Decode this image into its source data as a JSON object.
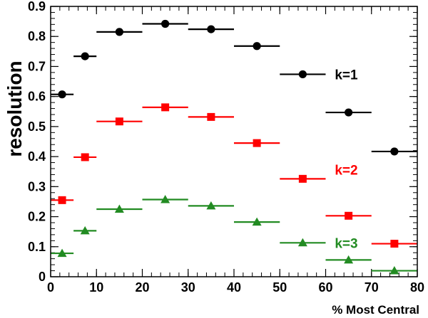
{
  "chart_data": {
    "type": "scatter",
    "xlabel": "% Most Central",
    "ylabel": "resolution",
    "xlim": [
      0,
      80
    ],
    "ylim": [
      0,
      0.9
    ],
    "x_ticks": [
      0,
      10,
      20,
      30,
      40,
      50,
      60,
      70,
      80
    ],
    "x_tick_labels": [
      "0",
      "10",
      "20",
      "30",
      "40",
      "50",
      "60",
      "70",
      "80"
    ],
    "y_ticks": [
      0,
      0.1,
      0.2,
      0.3,
      0.4,
      0.5,
      0.6,
      0.7,
      0.8,
      0.9
    ],
    "y_tick_labels": [
      "0",
      "0.1",
      "0.2",
      "0.3",
      "0.4",
      "0.5",
      "0.6",
      "0.7",
      "0.8",
      "0.9"
    ],
    "x_minor_step": 2,
    "y_minor_step": 0.02,
    "grid": false,
    "x_bins": [
      [
        0,
        5
      ],
      [
        5,
        10
      ],
      [
        10,
        20
      ],
      [
        20,
        30
      ],
      [
        30,
        40
      ],
      [
        40,
        50
      ],
      [
        50,
        60
      ],
      [
        60,
        70
      ],
      [
        70,
        80
      ]
    ],
    "x": [
      2.5,
      7.5,
      15,
      25,
      35,
      45,
      55,
      65,
      75
    ],
    "series": [
      {
        "name": "k=1",
        "marker": "circle",
        "color": "#000000",
        "values": [
          0.607,
          0.734,
          0.815,
          0.842,
          0.824,
          0.768,
          0.674,
          0.547,
          0.417
        ],
        "label_at": [
          62,
          0.674
        ]
      },
      {
        "name": "k=2",
        "marker": "square",
        "color": "#ff0000",
        "values": [
          0.255,
          0.398,
          0.517,
          0.564,
          0.532,
          0.445,
          0.326,
          0.203,
          0.11
        ],
        "label_at": [
          62,
          0.356
        ]
      },
      {
        "name": "k=3",
        "marker": "triangle",
        "color": "#228b22",
        "values": [
          0.078,
          0.153,
          0.225,
          0.257,
          0.236,
          0.182,
          0.113,
          0.056,
          0.02
        ],
        "label_at": [
          62,
          0.113
        ]
      }
    ]
  }
}
